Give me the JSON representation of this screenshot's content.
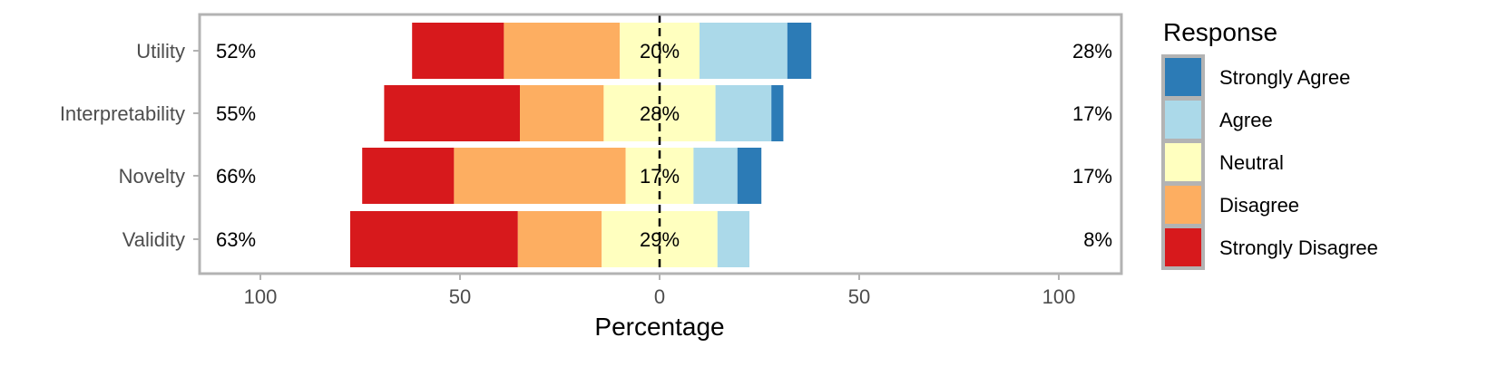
{
  "chart_data": {
    "type": "bar",
    "orientation": "horizontal",
    "stacked": "diverging",
    "categories": [
      "Utility",
      "Interpretability",
      "Novelty",
      "Validity"
    ],
    "series": [
      {
        "name": "Strongly Disagree",
        "color": "#d7191c",
        "values": [
          23,
          34,
          23,
          42
        ]
      },
      {
        "name": "Disagree",
        "color": "#fdae61",
        "values": [
          29,
          21,
          43,
          21
        ]
      },
      {
        "name": "Neutral",
        "color": "#ffffbf",
        "values": [
          20,
          28,
          17,
          29
        ]
      },
      {
        "name": "Agree",
        "color": "#abd9e9",
        "values": [
          22,
          14,
          11,
          8
        ]
      },
      {
        "name": "Strongly Agree",
        "color": "#2c7bb6",
        "values": [
          6,
          3,
          6,
          0
        ]
      }
    ],
    "left_labels": [
      "52%",
      "55%",
      "66%",
      "63%"
    ],
    "center_labels": [
      "20%",
      "28%",
      "17%",
      "29%"
    ],
    "right_labels": [
      "28%",
      "17%",
      "17%",
      "8%"
    ],
    "xlabel": "Percentage",
    "xticks": [
      -100,
      -50,
      0,
      50,
      100
    ],
    "xtick_labels": [
      "100",
      "50",
      "0",
      "50",
      "100"
    ],
    "xlim": [
      -115,
      115
    ],
    "legend_title": "Response",
    "legend_order": [
      "Strongly Agree",
      "Agree",
      "Neutral",
      "Disagree",
      "Strongly Disagree"
    ],
    "legend_position": "right",
    "grid": true,
    "panel_border_color": "#b3b3b3",
    "zero_line_color": "#000000"
  }
}
